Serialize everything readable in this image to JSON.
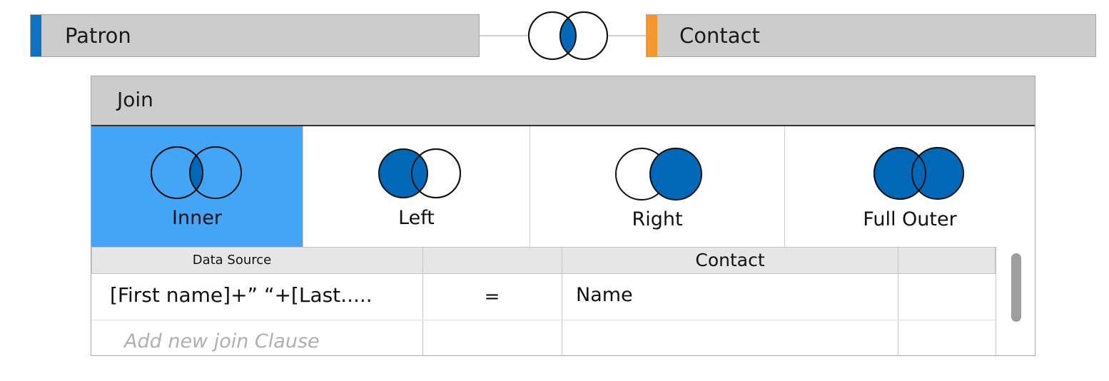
{
  "tables": {
    "left": {
      "name": "Patron",
      "accent": "#0b72c4"
    },
    "right": {
      "name": "Contact",
      "accent": "#f5962a"
    }
  },
  "join_panel": {
    "title": "Join",
    "types": [
      {
        "label": "Inner",
        "icon": "inner-join-icon",
        "selected": true
      },
      {
        "label": "Left",
        "icon": "left-join-icon",
        "selected": false
      },
      {
        "label": "Right",
        "icon": "right-join-icon",
        "selected": false
      },
      {
        "label": "Full Outer",
        "icon": "full-outer-join-icon",
        "selected": false
      }
    ],
    "grid": {
      "headers": [
        "Data Source",
        "",
        "Contact",
        ""
      ],
      "rows": [
        {
          "left": "[First name]+” “+[Last.....",
          "operator": "=",
          "right": "Name"
        }
      ],
      "add_clause_placeholder": "Add new join Clause"
    }
  },
  "colors": {
    "join_blue": "#0068b7",
    "selected_bg": "#42a5f5",
    "header_gray": "#cccccc"
  }
}
